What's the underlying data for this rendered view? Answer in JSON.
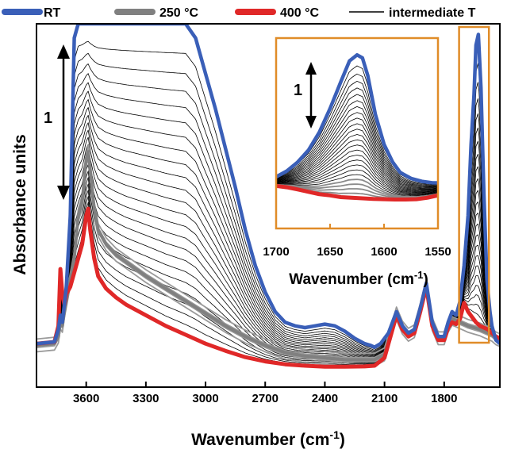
{
  "chart_data": {
    "type": "line",
    "xlabel": "Wavenumber (cm",
    "xlabel_sup": "-1",
    "xlabel_end": ")",
    "ylabel": "Absorbance units",
    "xlim": [
      3850,
      1520
    ],
    "x_reversed": true,
    "ylim": [
      0,
      10
    ],
    "xticks": [
      3600,
      3300,
      3000,
      2700,
      2400,
      2100,
      1800
    ],
    "legend": [
      {
        "label": "RT",
        "color": "#3a5fb8"
      },
      {
        "label": "250 °C",
        "color": "#808080"
      },
      {
        "label": "400 °C",
        "color": "#e02828"
      },
      {
        "label": "intermediate T",
        "color": "#000000"
      }
    ],
    "scale_bar_label": "1",
    "highlight_region": [
      1700,
      1550
    ],
    "highlight_color": "#e08c28",
    "series": [
      {
        "name": "RT",
        "color": "#3a5fb8",
        "points": [
          [
            3850,
            1.0
          ],
          [
            3760,
            1.05
          ],
          [
            3740,
            1.4
          ],
          [
            3730,
            1.8
          ],
          [
            3720,
            1.6
          ],
          [
            3710,
            2.1
          ],
          [
            3700,
            2.6
          ],
          [
            3680,
            4.6
          ],
          [
            3660,
            9.6
          ],
          [
            3640,
            10
          ],
          [
            3620,
            10
          ],
          [
            3600,
            10
          ],
          [
            3580,
            10
          ],
          [
            3560,
            10
          ],
          [
            3540,
            10
          ],
          [
            3520,
            10
          ],
          [
            3500,
            10
          ],
          [
            3450,
            10
          ],
          [
            3400,
            10
          ],
          [
            3300,
            10
          ],
          [
            3200,
            10
          ],
          [
            3100,
            10
          ],
          [
            3050,
            9.6
          ],
          [
            3000,
            8.6
          ],
          [
            2950,
            7.6
          ],
          [
            2900,
            6.5
          ],
          [
            2850,
            5.4
          ],
          [
            2800,
            4.2
          ],
          [
            2750,
            3.2
          ],
          [
            2700,
            2.45
          ],
          [
            2650,
            1.9
          ],
          [
            2600,
            1.6
          ],
          [
            2550,
            1.5
          ],
          [
            2500,
            1.45
          ],
          [
            2450,
            1.5
          ],
          [
            2400,
            1.55
          ],
          [
            2350,
            1.5
          ],
          [
            2300,
            1.35
          ],
          [
            2250,
            1.15
          ],
          [
            2200,
            1.0
          ],
          [
            2170,
            0.95
          ],
          [
            2150,
            0.9
          ],
          [
            2120,
            1.0
          ],
          [
            2080,
            1.3
          ],
          [
            2040,
            1.9
          ],
          [
            2010,
            1.5
          ],
          [
            1980,
            1.3
          ],
          [
            1950,
            1.4
          ],
          [
            1920,
            2.0
          ],
          [
            1890,
            2.7
          ],
          [
            1860,
            1.6
          ],
          [
            1830,
            1.2
          ],
          [
            1800,
            1.2
          ],
          [
            1780,
            1.6
          ],
          [
            1760,
            1.9
          ],
          [
            1740,
            1.8
          ],
          [
            1720,
            2.2
          ],
          [
            1700,
            3.2
          ],
          [
            1680,
            4.6
          ],
          [
            1665,
            6.6
          ],
          [
            1650,
            8.0
          ],
          [
            1640,
            9.4
          ],
          [
            1628,
            9.7
          ],
          [
            1615,
            8.2
          ],
          [
            1600,
            5.2
          ],
          [
            1585,
            2.8
          ],
          [
            1570,
            1.9
          ],
          [
            1560,
            1.5
          ],
          [
            1540,
            1.1
          ],
          [
            1520,
            1.0
          ]
        ]
      },
      {
        "name": "250 °C",
        "color": "#808080",
        "points": [
          [
            3850,
            0.95
          ],
          [
            3760,
            1.0
          ],
          [
            3740,
            1.2
          ],
          [
            3730,
            1.6
          ],
          [
            3720,
            1.5
          ],
          [
            3710,
            1.9
          ],
          [
            3700,
            2.2
          ],
          [
            3680,
            2.8
          ],
          [
            3660,
            3.4
          ],
          [
            3640,
            4.6
          ],
          [
            3620,
            5.0
          ],
          [
            3600,
            6.2
          ],
          [
            3590,
            6.4
          ],
          [
            3580,
            5.9
          ],
          [
            3560,
            4.8
          ],
          [
            3540,
            4.2
          ],
          [
            3500,
            3.8
          ],
          [
            3450,
            3.5
          ],
          [
            3400,
            3.3
          ],
          [
            3300,
            2.9
          ],
          [
            3200,
            2.55
          ],
          [
            3100,
            2.2
          ],
          [
            3000,
            1.85
          ],
          [
            2900,
            1.5
          ],
          [
            2800,
            1.2
          ],
          [
            2700,
            0.95
          ],
          [
            2600,
            0.75
          ],
          [
            2500,
            0.65
          ],
          [
            2400,
            0.6
          ],
          [
            2300,
            0.55
          ],
          [
            2200,
            0.55
          ],
          [
            2150,
            0.55
          ],
          [
            2100,
            0.7
          ],
          [
            2040,
            1.85
          ],
          [
            2010,
            1.45
          ],
          [
            1980,
            1.25
          ],
          [
            1950,
            1.35
          ],
          [
            1920,
            1.95
          ],
          [
            1890,
            2.65
          ],
          [
            1860,
            1.55
          ],
          [
            1830,
            1.15
          ],
          [
            1800,
            1.15
          ],
          [
            1780,
            1.5
          ],
          [
            1760,
            1.7
          ],
          [
            1740,
            1.65
          ],
          [
            1720,
            1.6
          ],
          [
            1700,
            1.55
          ],
          [
            1680,
            1.5
          ],
          [
            1650,
            1.45
          ],
          [
            1620,
            1.4
          ],
          [
            1600,
            1.35
          ],
          [
            1580,
            1.3
          ],
          [
            1560,
            1.25
          ],
          [
            1540,
            1.15
          ],
          [
            1520,
            1.1
          ]
        ]
      },
      {
        "name": "400 °C",
        "color": "#e02828",
        "points": [
          [
            3850,
            1.0
          ],
          [
            3760,
            1.05
          ],
          [
            3740,
            1.5
          ],
          [
            3730,
            3.1
          ],
          [
            3720,
            2.4
          ],
          [
            3710,
            2.1
          ],
          [
            3700,
            2.4
          ],
          [
            3680,
            2.6
          ],
          [
            3660,
            3.0
          ],
          [
            3640,
            3.4
          ],
          [
            3620,
            3.8
          ],
          [
            3600,
            4.6
          ],
          [
            3590,
            4.8
          ],
          [
            3580,
            4.2
          ],
          [
            3560,
            3.4
          ],
          [
            3540,
            2.9
          ],
          [
            3500,
            2.55
          ],
          [
            3450,
            2.3
          ],
          [
            3400,
            2.1
          ],
          [
            3300,
            1.8
          ],
          [
            3200,
            1.5
          ],
          [
            3100,
            1.25
          ],
          [
            3000,
            1.0
          ],
          [
            2900,
            0.8
          ],
          [
            2800,
            0.62
          ],
          [
            2700,
            0.5
          ],
          [
            2600,
            0.42
          ],
          [
            2500,
            0.38
          ],
          [
            2400,
            0.35
          ],
          [
            2300,
            0.35
          ],
          [
            2200,
            0.36
          ],
          [
            2150,
            0.38
          ],
          [
            2100,
            0.6
          ],
          [
            2040,
            1.8
          ],
          [
            2010,
            1.4
          ],
          [
            1980,
            1.2
          ],
          [
            1950,
            1.3
          ],
          [
            1920,
            1.9
          ],
          [
            1890,
            2.6
          ],
          [
            1860,
            1.5
          ],
          [
            1830,
            1.1
          ],
          [
            1800,
            1.1
          ],
          [
            1780,
            1.45
          ],
          [
            1760,
            1.6
          ],
          [
            1740,
            1.55
          ],
          [
            1720,
            1.7
          ],
          [
            1700,
            2.15
          ],
          [
            1680,
            1.9
          ],
          [
            1660,
            1.75
          ],
          [
            1640,
            1.6
          ],
          [
            1620,
            1.5
          ],
          [
            1600,
            1.45
          ],
          [
            1580,
            1.4
          ],
          [
            1560,
            1.3
          ],
          [
            1540,
            1.2
          ],
          [
            1520,
            1.15
          ]
        ]
      }
    ],
    "intermediate_count": 22,
    "inset": {
      "xlim": [
        1700,
        1550
      ],
      "xticks": [
        1700,
        1650,
        1600,
        1550
      ],
      "xlabel": "Wavenumber (cm",
      "xlabel_sup": "-1",
      "xlabel_end": ")",
      "scale_bar_label": "1",
      "rt_points": [
        [
          1700,
          1.2
        ],
        [
          1690,
          1.4
        ],
        [
          1680,
          1.7
        ],
        [
          1670,
          2.1
        ],
        [
          1660,
          2.7
        ],
        [
          1650,
          3.5
        ],
        [
          1640,
          4.4
        ],
        [
          1632,
          5.1
        ],
        [
          1625,
          5.3
        ],
        [
          1620,
          5.2
        ],
        [
          1615,
          4.6
        ],
        [
          1608,
          3.3
        ],
        [
          1600,
          2.3
        ],
        [
          1592,
          1.7
        ],
        [
          1585,
          1.35
        ],
        [
          1575,
          1.15
        ],
        [
          1565,
          1.05
        ],
        [
          1555,
          1.0
        ],
        [
          1550,
          1.0
        ]
      ],
      "hot_points": [
        [
          1700,
          0.9
        ],
        [
          1690,
          0.85
        ],
        [
          1680,
          0.78
        ],
        [
          1670,
          0.7
        ],
        [
          1660,
          0.62
        ],
        [
          1650,
          0.58
        ],
        [
          1640,
          0.52
        ],
        [
          1630,
          0.5
        ],
        [
          1620,
          0.48
        ],
        [
          1610,
          0.46
        ],
        [
          1600,
          0.45
        ],
        [
          1590,
          0.44
        ],
        [
          1580,
          0.44
        ],
        [
          1570,
          0.45
        ],
        [
          1560,
          0.5
        ],
        [
          1550,
          0.58
        ]
      ]
    }
  }
}
